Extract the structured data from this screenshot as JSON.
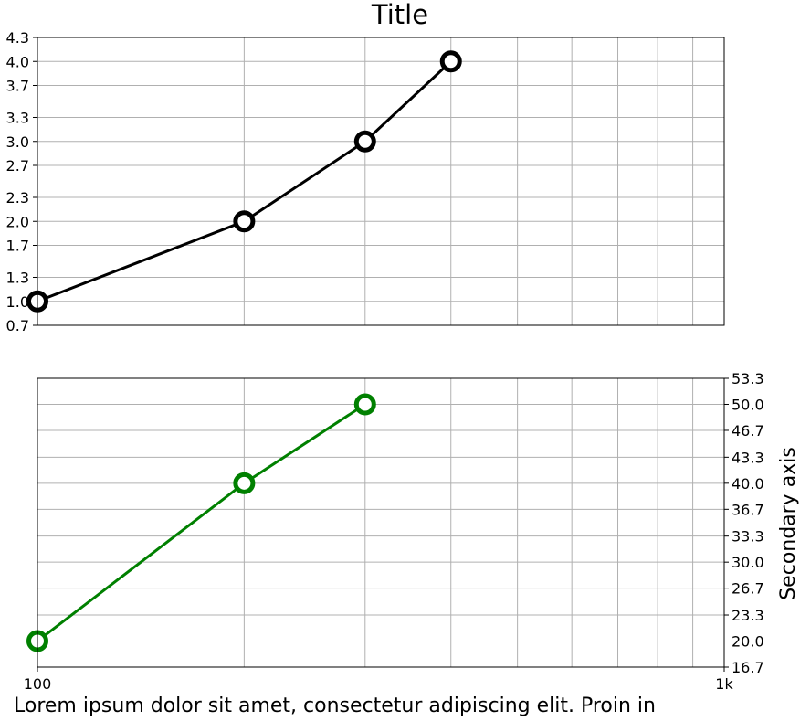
{
  "chart_data": [
    {
      "type": "line",
      "title": "Title",
      "xscale": "log",
      "xlim": [
        100,
        1000
      ],
      "ylim": [
        0.7,
        4.3
      ],
      "yticks": [
        "0.7",
        "1.0",
        "1.3",
        "1.7",
        "2.0",
        "2.3",
        "2.7",
        "3.0",
        "3.3",
        "3.7",
        "4.0",
        "4.3"
      ],
      "grid": true,
      "series": [
        {
          "x": [
            100,
            200,
            300,
            400
          ],
          "y": [
            1,
            2,
            3,
            4
          ],
          "color": "#000000",
          "marker": "hollow-circle"
        }
      ]
    },
    {
      "type": "line",
      "xscale": "log",
      "xlim": [
        100,
        1000
      ],
      "xticks": [
        "100",
        "1k"
      ],
      "ylim": [
        16.7,
        53.3
      ],
      "yaxis_position": "right",
      "ylabel": "Secondary axis",
      "yticks": [
        "16.7",
        "20.0",
        "23.3",
        "26.7",
        "30.0",
        "33.3",
        "36.7",
        "40.0",
        "43.3",
        "46.7",
        "50.0",
        "53.3"
      ],
      "grid": true,
      "series": [
        {
          "x": [
            100,
            200,
            300
          ],
          "y": [
            20,
            40,
            50
          ],
          "color": "#008000",
          "marker": "hollow-circle"
        }
      ]
    }
  ],
  "caption": "Lorem ipsum dolor sit amet, consectetur adipiscing elit. Proin in"
}
